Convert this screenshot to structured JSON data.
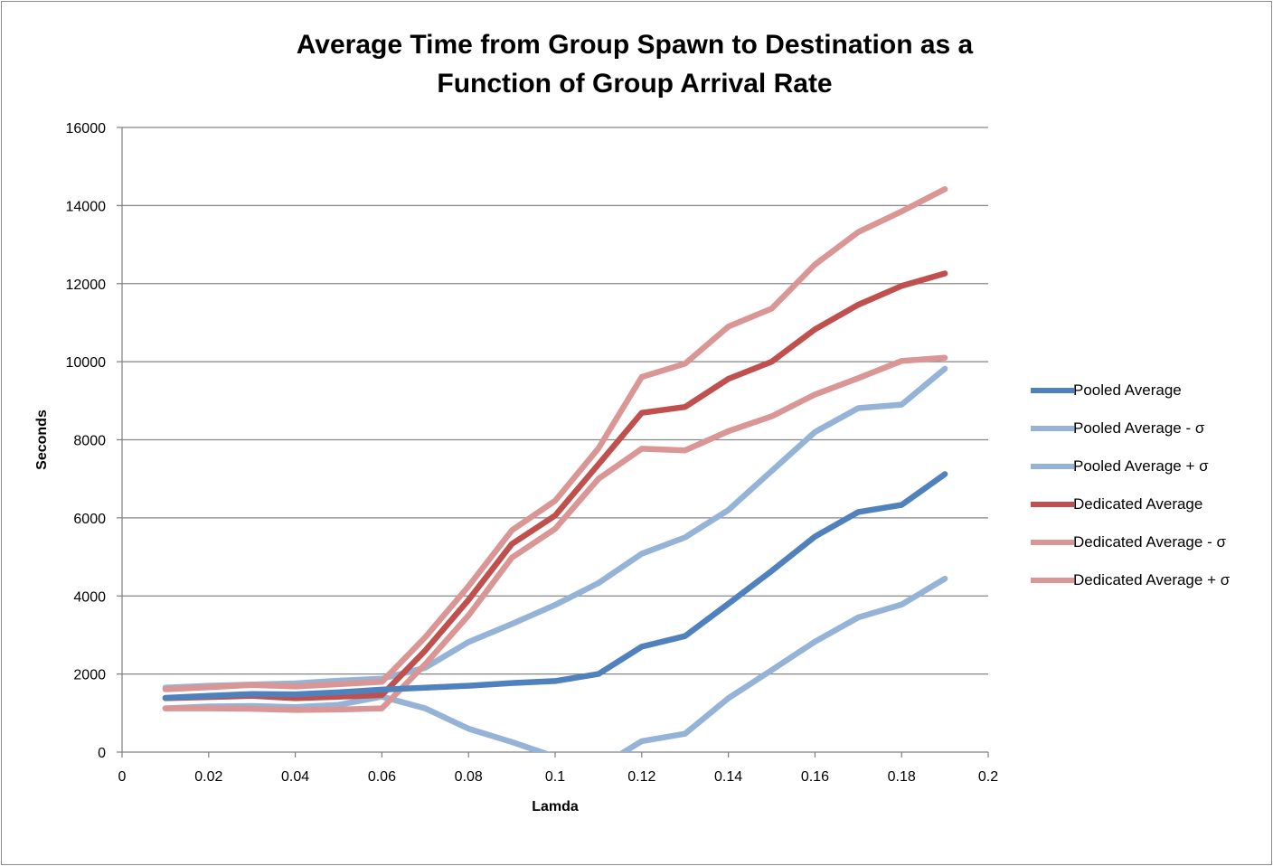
{
  "chart_data": {
    "type": "line",
    "title": [
      "Average Time from Group Spawn to Destination as a",
      "Function of Group Arrival Rate"
    ],
    "xlabel": "Lamda",
    "ylabel": "Seconds",
    "xlim": [
      0,
      0.2
    ],
    "ylim": [
      0,
      16000
    ],
    "xticks": [
      "0",
      "0.02",
      "0.04",
      "0.06",
      "0.08",
      "0.1",
      "0.12",
      "0.14",
      "0.16",
      "0.18",
      "0.2"
    ],
    "yticks": [
      "0",
      "2000",
      "4000",
      "6000",
      "8000",
      "10000",
      "12000",
      "14000",
      "16000"
    ],
    "grid": "horizontal",
    "legend_position": "right",
    "x": [
      0.01,
      0.02,
      0.03,
      0.04,
      0.05,
      0.06,
      0.07,
      0.08,
      0.09,
      0.1,
      0.11,
      0.12,
      0.13,
      0.14,
      0.15,
      0.16,
      0.17,
      0.18,
      0.19
    ],
    "series": [
      {
        "name": "Pooled Average - σ",
        "color": "#95b3d7",
        "values": [
          1120,
          1170,
          1180,
          1150,
          1210,
          1420,
          1120,
          600,
          260,
          -120,
          -400,
          280,
          470,
          1380,
          2100,
          2830,
          3450,
          3780,
          4440
        ]
      },
      {
        "name": "Pooled Average + σ",
        "color": "#95b3d7",
        "values": [
          1650,
          1700,
          1730,
          1760,
          1830,
          1880,
          2160,
          2820,
          3280,
          3770,
          4330,
          5080,
          5500,
          6200,
          7200,
          8200,
          8810,
          8900,
          9820
        ]
      },
      {
        "name": "Dedicated Average - σ",
        "color": "#d99694",
        "values": [
          1120,
          1120,
          1110,
          1080,
          1090,
          1120,
          2250,
          3500,
          4980,
          5720,
          7000,
          7770,
          7730,
          8220,
          8600,
          9160,
          9580,
          10020,
          10100
        ]
      },
      {
        "name": "Dedicated Average + σ",
        "color": "#d99694",
        "values": [
          1610,
          1660,
          1720,
          1680,
          1740,
          1800,
          2940,
          4250,
          5680,
          6440,
          7780,
          9610,
          9950,
          10900,
          11360,
          12490,
          13320,
          13850,
          14420
        ]
      },
      {
        "name": "Dedicated Average",
        "color": "#c0504d",
        "values": [
          1380,
          1410,
          1440,
          1380,
          1420,
          1460,
          2600,
          3900,
          5330,
          6060,
          7370,
          8690,
          8840,
          9560,
          10000,
          10830,
          11460,
          11940,
          12260
        ]
      },
      {
        "name": "Pooled Average",
        "color": "#4f81bd",
        "values": [
          1390,
          1440,
          1490,
          1480,
          1530,
          1600,
          1650,
          1700,
          1770,
          1820,
          2000,
          2700,
          2970,
          3800,
          4640,
          5520,
          6150,
          6330,
          7120
        ]
      }
    ],
    "legend_order": [
      "Pooled Average",
      "Pooled Average - σ",
      "Pooled Average + σ",
      "Dedicated Average",
      "Dedicated Average - σ",
      "Dedicated Average + σ"
    ],
    "legend_colors": [
      "#4f81bd",
      "#95b3d7",
      "#95b3d7",
      "#c0504d",
      "#d99694",
      "#d99694"
    ]
  }
}
